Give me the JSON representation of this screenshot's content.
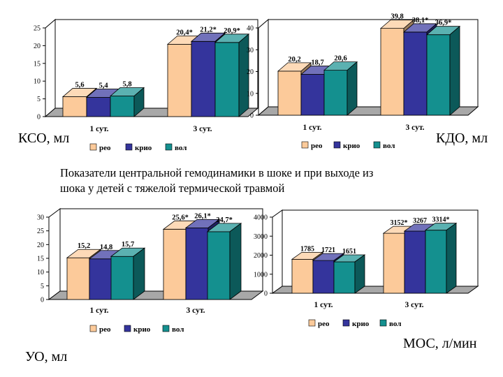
{
  "caption": {
    "line1": "Показатели центральной гемодинамики в шоке и при выходе из",
    "line2": "шока у детей с тяжелой термической травмой"
  },
  "colors": {
    "reo": "#FCCA9A",
    "krio": "#34349C",
    "vol": "#14908F",
    "frame": "#000000",
    "floor": "#A8A8A8"
  },
  "chart_data": [
    {
      "id": "kso",
      "type": "bar",
      "unit_label": "КСО, мл",
      "categories": [
        "1 сут.",
        "3 сут."
      ],
      "series": [
        {
          "name": "рео",
          "values": [
            5.6,
            20.4
          ],
          "labels": [
            "5,6",
            "20,4*"
          ]
        },
        {
          "name": "крио",
          "values": [
            5.4,
            21.2
          ],
          "labels": [
            "5,4",
            "21,2*"
          ]
        },
        {
          "name": "вол",
          "values": [
            5.8,
            20.9
          ],
          "labels": [
            "5,8",
            "20,9*"
          ]
        }
      ],
      "ylim": [
        0,
        25
      ],
      "yticks": [
        "0",
        "5",
        "10",
        "15",
        "20",
        "25"
      ],
      "legend": [
        "рео",
        "крио",
        "вол"
      ]
    },
    {
      "id": "kdo",
      "type": "bar",
      "unit_label": "КДО, мл",
      "categories": [
        "1 сут.",
        "3 сут."
      ],
      "series": [
        {
          "name": "рео",
          "values": [
            20.2,
            39.8
          ],
          "labels": [
            "20,2",
            "39,8"
          ]
        },
        {
          "name": "крио",
          "values": [
            18.7,
            38.1
          ],
          "labels": [
            "18,7",
            "38,1*"
          ]
        },
        {
          "name": "вол",
          "values": [
            20.6,
            36.9
          ],
          "labels": [
            "20,6",
            "36,9*"
          ]
        }
      ],
      "ylim": [
        0,
        40
      ],
      "yticks": [
        "0",
        "10",
        "20",
        "30",
        "40"
      ],
      "legend": [
        "рео",
        "крио",
        "вол"
      ]
    },
    {
      "id": "uo",
      "type": "bar",
      "unit_label": "УО, мл",
      "categories": [
        "1 сут.",
        "3 сут."
      ],
      "series": [
        {
          "name": "рео",
          "values": [
            15.2,
            25.6
          ],
          "labels": [
            "15,2",
            "25,6*"
          ]
        },
        {
          "name": "крио",
          "values": [
            14.8,
            26.1
          ],
          "labels": [
            "14,8",
            "26,1*"
          ]
        },
        {
          "name": "вол",
          "values": [
            15.7,
            24.7
          ],
          "labels": [
            "15,7",
            "24,7*"
          ]
        }
      ],
      "ylim": [
        0,
        30
      ],
      "yticks": [
        "0",
        "5",
        "10",
        "15",
        "20",
        "25",
        "30"
      ],
      "legend": [
        "рео",
        "крио",
        "вол"
      ]
    },
    {
      "id": "mos",
      "type": "bar",
      "unit_label": "МОС, л/мин",
      "categories": [
        "1 сут.",
        "3 сут."
      ],
      "series": [
        {
          "name": "рео",
          "values": [
            1785,
            3152
          ],
          "labels": [
            "1785",
            "3152*"
          ]
        },
        {
          "name": "крио",
          "values": [
            1721,
            3267
          ],
          "labels": [
            "1721",
            "3267"
          ]
        },
        {
          "name": "вол",
          "values": [
            1651,
            3314
          ],
          "labels": [
            "1651",
            "3314*"
          ]
        }
      ],
      "ylim": [
        0,
        4000
      ],
      "yticks": [
        "0",
        "1000",
        "2000",
        "3000",
        "4000"
      ],
      "legend": [
        "рео",
        "крио",
        "вол"
      ]
    }
  ]
}
